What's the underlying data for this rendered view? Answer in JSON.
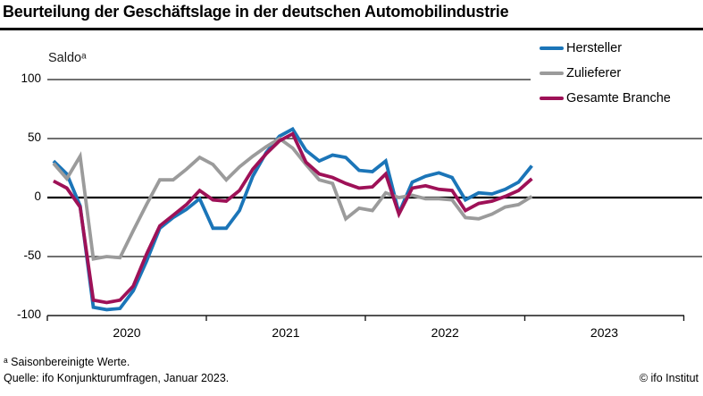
{
  "header": {
    "title": "Beurteilung der Geschäftslage in der deutschen Automobilindustrie"
  },
  "chart": {
    "y_axis_label": "Saldoᵃ",
    "colors": {
      "hersteller_blue": "#1B75B8",
      "zulieferer_gray": "#9B9B9B",
      "gesamte_branche_crimson": "#9E1157",
      "gridline": "#1a1a1a",
      "zero_line": "#000000",
      "text": "#000000"
    }
  },
  "legend": {
    "items": [
      {
        "label": "Hersteller",
        "color": "#1B75B8"
      },
      {
        "label": "Zulieferer",
        "color": "#9B9B9B"
      },
      {
        "label": "Gesamte Branche",
        "color": "#9E1157"
      }
    ]
  },
  "footnotes": {
    "note": "ᵃ Saisonbereinigte Werte.",
    "source": "Quelle: ifo Konjunkturumfragen, Januar 2023.",
    "copyright": "© ifo Institut"
  },
  "chart_data": {
    "type": "line",
    "title": "Beurteilung der Geschäftslage in der deutschen Automobilindustrie",
    "xlabel": "",
    "ylabel": "Saldoᵃ (saisonbereinigte Werte)",
    "ylim": [
      -100,
      100
    ],
    "y_gridlines": [
      100,
      50,
      0,
      -50,
      -100
    ],
    "x_year_labels": [
      "2020",
      "2021",
      "2022",
      "2023"
    ],
    "grid": "horizontal-only",
    "legend_position": "top-right",
    "months": [
      "2020-01",
      "2020-02",
      "2020-03",
      "2020-04",
      "2020-05",
      "2020-06",
      "2020-07",
      "2020-08",
      "2020-09",
      "2020-10",
      "2020-11",
      "2020-12",
      "2021-01",
      "2021-02",
      "2021-03",
      "2021-04",
      "2021-05",
      "2021-06",
      "2021-07",
      "2021-08",
      "2021-09",
      "2021-10",
      "2021-11",
      "2021-12",
      "2022-01",
      "2022-02",
      "2022-03",
      "2022-04",
      "2022-05",
      "2022-06",
      "2022-07",
      "2022-08",
      "2022-09",
      "2022-10",
      "2022-11",
      "2022-12",
      "2023-01"
    ],
    "series": [
      {
        "name": "Hersteller",
        "color": "#1B75B8",
        "values": [
          31,
          20,
          -7,
          -93,
          -95,
          -94,
          -79,
          -54,
          -26,
          -17,
          -10,
          -1,
          -26,
          -26,
          -11,
          18,
          38,
          52,
          58,
          40,
          31,
          36,
          34,
          23,
          22,
          31,
          -13,
          13,
          18,
          21,
          17,
          -2,
          4,
          3,
          7,
          13,
          27
        ]
      },
      {
        "name": "Zulieferer",
        "color": "#9B9B9B",
        "values": [
          29,
          16,
          35,
          -52,
          -50,
          -51,
          -28,
          -6,
          15,
          15,
          24,
          34,
          28,
          15,
          26,
          35,
          43,
          50,
          42,
          28,
          15,
          12,
          -18,
          -9,
          -11,
          4,
          0,
          2,
          -1,
          -1,
          -2,
          -17,
          -18,
          -14,
          -8,
          -6,
          1
        ]
      },
      {
        "name": "Gesamte Branche",
        "color": "#9E1157",
        "values": [
          14,
          8,
          -8,
          -87,
          -89,
          -87,
          -75,
          -48,
          -24,
          -15,
          -6,
          6,
          -2,
          -3,
          6,
          24,
          37,
          48,
          54,
          30,
          20,
          17,
          12,
          8,
          9,
          20,
          -14,
          8,
          10,
          7,
          6,
          -11,
          -5,
          -3,
          1,
          6,
          16
        ]
      }
    ]
  }
}
